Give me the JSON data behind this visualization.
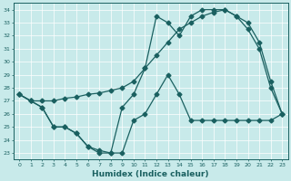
{
  "xlabel": "Humidex (Indice chaleur)",
  "background_color": "#c8eaea",
  "line_color": "#1a6060",
  "xlim": [
    -0.5,
    23.5
  ],
  "ylim": [
    22.5,
    34.5
  ],
  "yticks": [
    23,
    24,
    25,
    26,
    27,
    28,
    29,
    30,
    31,
    32,
    33,
    34
  ],
  "xticks": [
    0,
    1,
    2,
    3,
    4,
    5,
    6,
    7,
    8,
    9,
    10,
    11,
    12,
    13,
    14,
    15,
    16,
    17,
    18,
    19,
    20,
    21,
    22,
    23
  ],
  "series1_x": [
    0,
    1,
    2,
    3,
    4,
    5,
    6,
    7,
    8,
    9,
    10,
    11,
    12,
    13,
    14,
    15,
    16,
    17,
    18,
    19,
    20,
    21,
    22,
    23
  ],
  "series1_y": [
    27.5,
    27.0,
    26.5,
    25.0,
    25.0,
    24.5,
    23.5,
    23.0,
    23.0,
    26.5,
    27.5,
    29.5,
    33.5,
    33.0,
    32.0,
    33.5,
    34.0,
    34.0,
    34.0,
    33.5,
    32.5,
    31.0,
    28.0,
    26.0
  ],
  "series2_x": [
    0,
    1,
    2,
    3,
    4,
    5,
    6,
    7,
    8,
    9,
    10,
    11,
    12,
    13,
    14,
    15,
    16,
    17,
    18,
    19,
    20,
    21,
    22,
    23
  ],
  "series2_y": [
    27.5,
    27.0,
    27.0,
    27.0,
    27.2,
    27.3,
    27.5,
    27.6,
    27.8,
    28.0,
    28.5,
    29.5,
    30.5,
    31.5,
    32.5,
    33.0,
    33.5,
    33.8,
    34.0,
    33.5,
    33.0,
    31.5,
    28.5,
    26.0
  ],
  "series3_x": [
    0,
    1,
    2,
    3,
    4,
    5,
    6,
    7,
    8,
    9,
    10,
    11,
    12,
    13,
    14,
    15,
    16,
    17,
    18,
    19,
    20,
    21,
    22,
    23
  ],
  "series3_y": [
    27.5,
    27.0,
    26.5,
    25.0,
    25.0,
    24.5,
    23.5,
    23.2,
    23.0,
    23.0,
    25.5,
    26.0,
    27.5,
    29.0,
    27.5,
    25.5,
    25.5,
    25.5,
    25.5,
    25.5,
    25.5,
    25.5,
    25.5,
    26.0
  ]
}
